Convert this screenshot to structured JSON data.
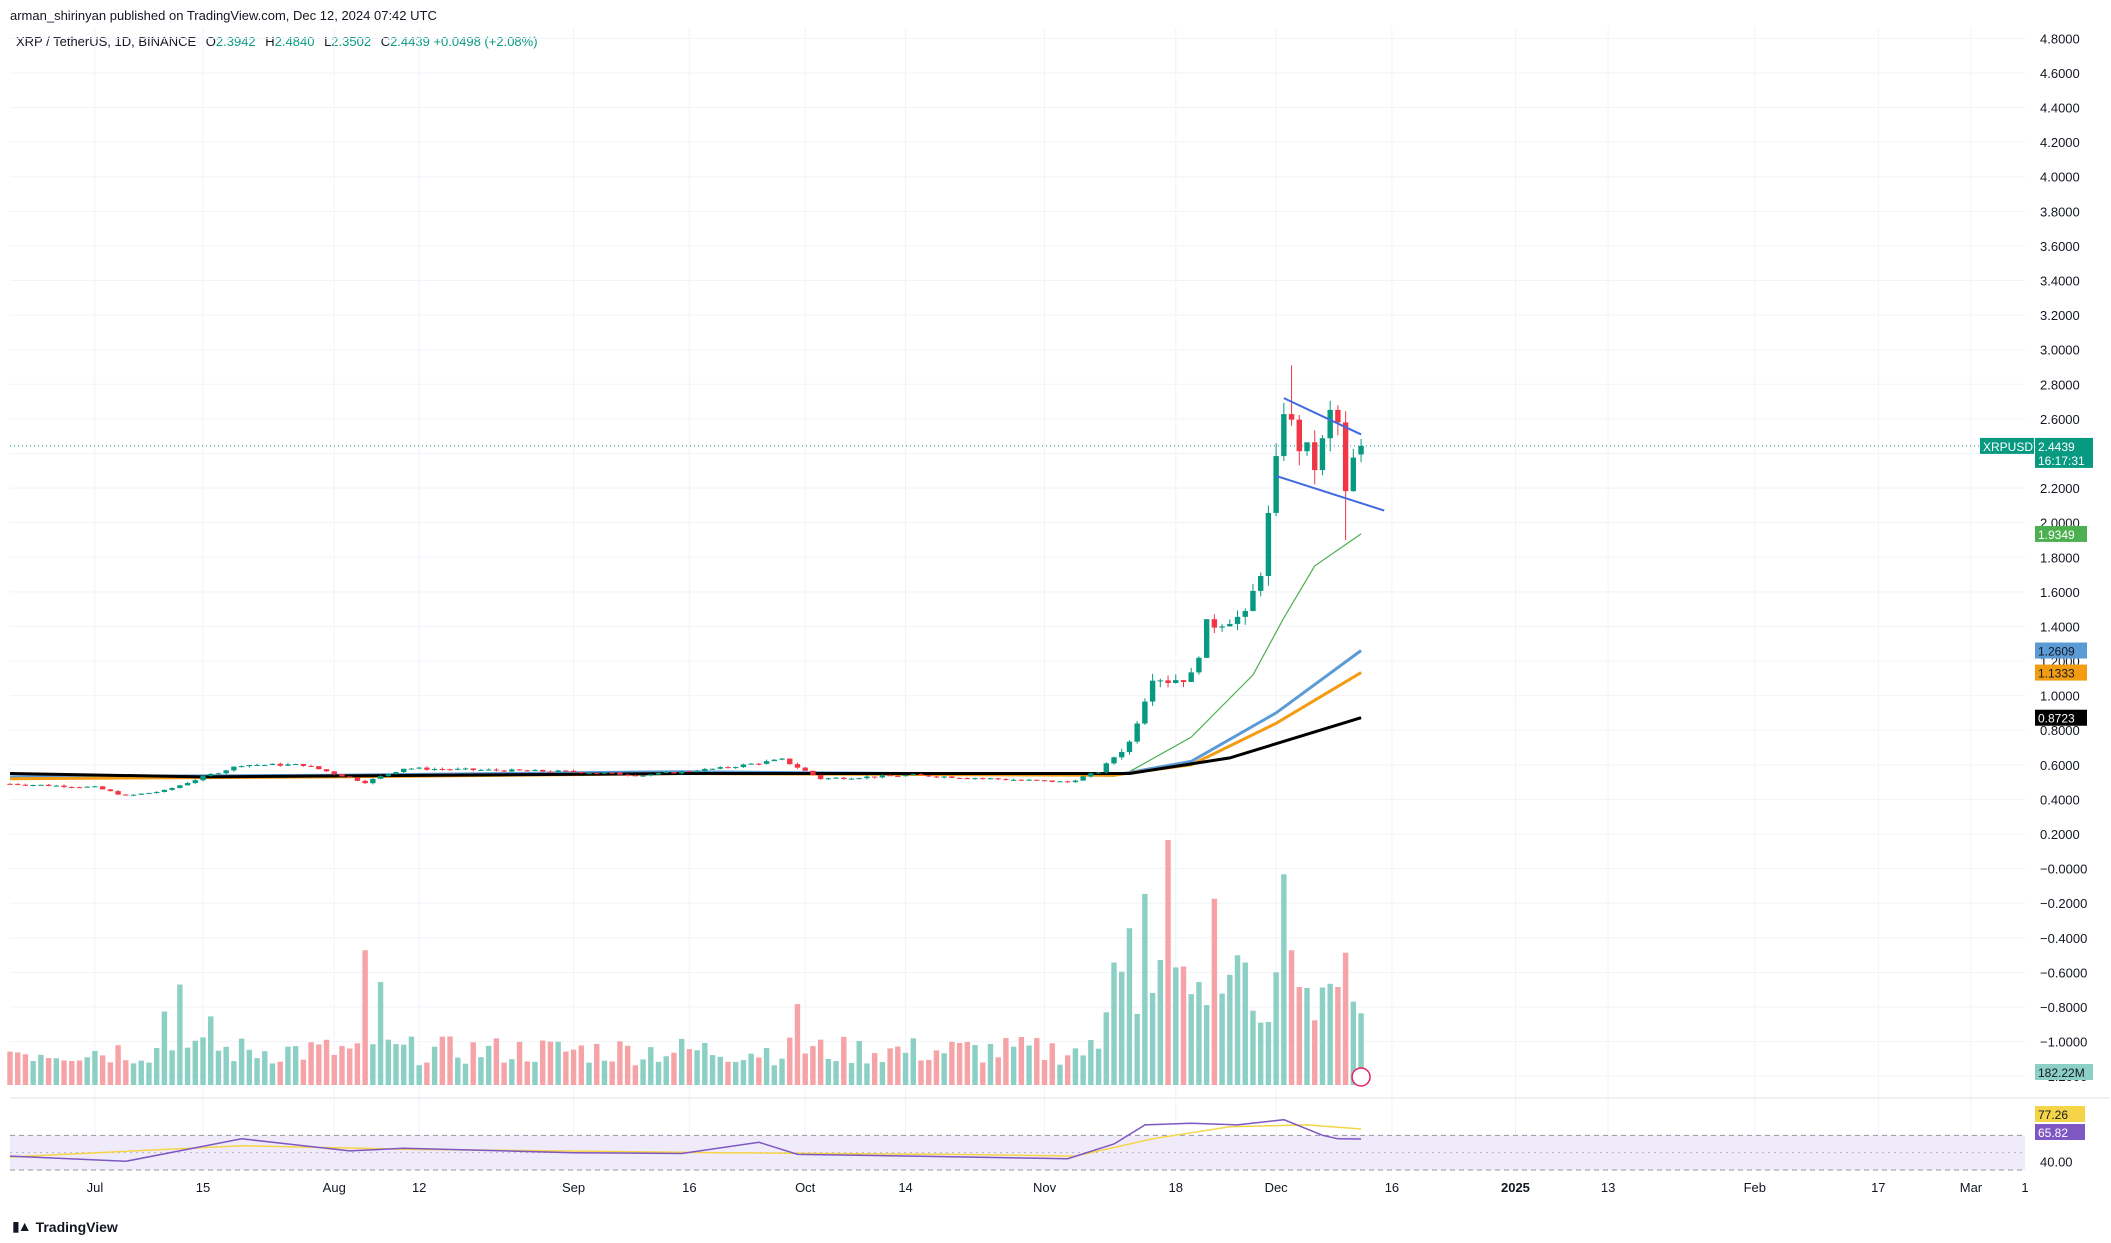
{
  "header": {
    "published": "arman_shirinyan published on TradingView.com, Dec 12, 2024 07:42 UTC",
    "symbol_line": "XRP / TetherUS, 1D, BINANCE",
    "open_label": "O",
    "open": "2.3942",
    "high_label": "H",
    "high": "2.4840",
    "low_label": "L",
    "low": "2.3502",
    "close_label": "C",
    "close": "2.4439",
    "change": "+0.0498 (+2.08%)"
  },
  "brand": {
    "name": "TradingView"
  },
  "colors": {
    "up": "#089981",
    "down": "#f23645",
    "up_vol": "#8ccfc4",
    "down_vol": "#f5a3a6",
    "ema20": "#4caf50",
    "ema50": "#5b9bd5",
    "ema100": "#f39c12",
    "ema200": "#000000",
    "trend": "#4169e1",
    "rsi": "#7e57c2",
    "rsi_ma": "#f5d547",
    "band": "#f0ebfa"
  },
  "chart_data": {
    "type": "candlestick",
    "symbol": "XRPUSDT",
    "title": "XRP / TetherUS, 1D, BINANCE",
    "price_axis_ticks": [
      "4.8000",
      "4.6000",
      "4.4000",
      "4.2000",
      "4.0000",
      "3.8000",
      "3.6000",
      "3.4000",
      "3.2000",
      "3.0000",
      "2.8000",
      "2.6000",
      "2.4000",
      "2.2000",
      "2.0000",
      "1.8000",
      "1.6000",
      "1.4000",
      "1.2000",
      "1.0000",
      "0.8000",
      "0.6000",
      "0.4000",
      "0.2000",
      "−0.0000",
      "−0.2000",
      "−0.4000",
      "−0.6000",
      "−0.8000",
      "−1.0000",
      "−1.2000"
    ],
    "price_ticks_values": [
      4.8,
      4.6,
      4.4,
      4.2,
      4.0,
      3.8,
      3.6,
      3.4,
      3.2,
      3.0,
      2.8,
      2.6,
      2.4,
      2.2,
      2.0,
      1.8,
      1.6,
      1.4,
      1.2,
      1.0,
      0.8,
      0.6,
      0.4,
      0.2,
      0.0,
      -0.2,
      -0.4,
      -0.6,
      -0.8,
      -1.0,
      -1.2
    ],
    "ylim": [
      -1.28,
      4.86
    ],
    "x_range_days": [
      "2024-06-20",
      "2025-03-08"
    ],
    "time_axis_labels": [
      {
        "date": "2024-07-01",
        "label": "Jul"
      },
      {
        "date": "2024-07-15",
        "label": "15"
      },
      {
        "date": "2024-08-01",
        "label": "Aug"
      },
      {
        "date": "2024-08-12",
        "label": "12"
      },
      {
        "date": "2024-09-01",
        "label": "Sep"
      },
      {
        "date": "2024-09-16",
        "label": "16"
      },
      {
        "date": "2024-10-01",
        "label": "Oct"
      },
      {
        "date": "2024-10-14",
        "label": "14"
      },
      {
        "date": "2024-11-01",
        "label": "Nov"
      },
      {
        "date": "2024-11-18",
        "label": "18"
      },
      {
        "date": "2024-12-01",
        "label": "Dec"
      },
      {
        "date": "2024-12-16",
        "label": "16"
      },
      {
        "date": "2025-01-01",
        "label": "2025"
      },
      {
        "date": "2025-01-13",
        "label": "13"
      },
      {
        "date": "2025-02-01",
        "label": "Feb"
      },
      {
        "date": "2025-02-17",
        "label": "17"
      },
      {
        "date": "2025-03-01",
        "label": "Mar"
      }
    ],
    "trailing_axis_label": "1",
    "candle_anchors": [
      [
        "2024-06-20",
        0.49
      ],
      [
        "2024-07-01",
        0.47
      ],
      [
        "2024-07-05",
        0.42
      ],
      [
        "2024-07-10",
        0.45
      ],
      [
        "2024-07-15",
        0.53
      ],
      [
        "2024-07-20",
        0.6
      ],
      [
        "2024-07-28",
        0.6
      ],
      [
        "2024-08-05",
        0.5
      ],
      [
        "2024-08-10",
        0.58
      ],
      [
        "2024-08-20",
        0.57
      ],
      [
        "2024-09-01",
        0.56
      ],
      [
        "2024-09-10",
        0.54
      ],
      [
        "2024-09-20",
        0.58
      ],
      [
        "2024-09-28",
        0.63
      ],
      [
        "2024-10-03",
        0.52
      ],
      [
        "2024-10-15",
        0.54
      ],
      [
        "2024-10-25",
        0.52
      ],
      [
        "2024-11-04",
        0.5
      ],
      [
        "2024-11-08",
        0.56
      ],
      [
        "2024-11-12",
        0.73
      ],
      [
        "2024-11-15",
        1.12
      ],
      [
        "2024-11-17",
        1.09
      ],
      [
        "2024-11-20",
        1.11
      ],
      [
        "2024-11-22",
        1.4
      ],
      [
        "2024-11-25",
        1.45
      ],
      [
        "2024-11-27",
        1.45
      ],
      [
        "2024-11-29",
        1.73
      ],
      [
        "2024-12-01",
        2.32
      ],
      [
        "2024-12-02",
        2.68
      ],
      [
        "2024-12-03",
        2.55
      ],
      [
        "2024-12-04",
        2.45
      ],
      [
        "2024-12-05",
        2.4
      ],
      [
        "2024-12-06",
        2.33
      ],
      [
        "2024-12-07",
        2.45
      ],
      [
        "2024-12-08",
        2.62
      ],
      [
        "2024-12-09",
        2.57
      ],
      [
        "2024-12-10",
        2.15
      ],
      [
        "2024-12-11",
        2.35
      ],
      [
        "2024-12-12",
        2.4439
      ]
    ],
    "last_candle": {
      "date": "2024-12-12",
      "open": 2.3942,
      "high": 2.484,
      "low": 2.3502,
      "close": 2.4439
    },
    "wick_highlights": [
      {
        "date": "2024-12-03",
        "high": 2.91
      },
      {
        "date": "2024-12-10",
        "low": 1.9
      }
    ],
    "series": [
      {
        "name": "XRPUSDT",
        "last": "2.4439",
        "countdown": "16:17:31",
        "color": "#089981"
      },
      {
        "last": "1.9349",
        "color": "#4caf50",
        "points": [
          [
            "2024-11-12",
            0.56
          ],
          [
            "2024-11-20",
            0.76
          ],
          [
            "2024-11-28",
            1.12
          ],
          [
            "2024-12-02",
            1.45
          ],
          [
            "2024-12-06",
            1.75
          ],
          [
            "2024-12-12",
            1.9349
          ]
        ]
      },
      {
        "last": "1.2609",
        "color": "#5b9bd5",
        "points": [
          [
            "2024-06-20",
            0.53
          ],
          [
            "2024-08-01",
            0.54
          ],
          [
            "2024-09-15",
            0.56
          ],
          [
            "2024-11-10",
            0.54
          ],
          [
            "2024-11-20",
            0.62
          ],
          [
            "2024-12-01",
            0.9
          ],
          [
            "2024-12-12",
            1.2609
          ]
        ]
      },
      {
        "last": "1.1333",
        "color": "#f39c12",
        "points": [
          [
            "2024-06-20",
            0.52
          ],
          [
            "2024-08-01",
            0.53
          ],
          [
            "2024-09-15",
            0.55
          ],
          [
            "2024-11-10",
            0.54
          ],
          [
            "2024-11-20",
            0.6
          ],
          [
            "2024-12-01",
            0.84
          ],
          [
            "2024-12-12",
            1.1333
          ]
        ]
      },
      {
        "last": "0.8723",
        "color": "#000000",
        "points": [
          [
            "2024-06-20",
            0.55
          ],
          [
            "2024-07-15",
            0.53
          ],
          [
            "2024-09-15",
            0.55
          ],
          [
            "2024-11-12",
            0.55
          ],
          [
            "2024-11-25",
            0.64
          ],
          [
            "2024-12-12",
            0.8723
          ]
        ]
      }
    ],
    "trendlines": [
      {
        "from": [
          "2024-12-02",
          2.72
        ],
        "to": [
          "2024-12-12",
          2.51
        ]
      },
      {
        "from": [
          "2024-12-01",
          2.27
        ],
        "to": [
          "2024-12-15",
          2.07
        ]
      }
    ],
    "volume": {
      "last": "182.22M",
      "ylim": [
        0,
        1.0
      ],
      "spikes": [
        [
          "2024-07-10",
          0.3
        ],
        [
          "2024-07-12",
          0.41
        ],
        [
          "2024-07-16",
          0.28
        ],
        [
          "2024-08-05",
          0.55
        ],
        [
          "2024-08-07",
          0.42
        ],
        [
          "2024-09-30",
          0.33
        ],
        [
          "2024-11-10",
          0.5
        ],
        [
          "2024-11-12",
          0.64
        ],
        [
          "2024-11-14",
          0.78
        ],
        [
          "2024-11-16",
          0.51
        ],
        [
          "2024-11-17",
          1.0
        ],
        [
          "2024-11-18",
          0.48
        ],
        [
          "2024-11-21",
          0.42
        ],
        [
          "2024-11-23",
          0.76
        ],
        [
          "2024-11-25",
          0.45
        ],
        [
          "2024-12-01",
          0.46
        ],
        [
          "2024-12-02",
          0.86
        ],
        [
          "2024-12-03",
          0.55
        ],
        [
          "2024-12-04",
          0.4
        ],
        [
          "2024-12-09",
          0.4
        ],
        [
          "2024-12-10",
          0.54
        ],
        [
          "2024-12-11",
          0.34
        ]
      ]
    },
    "rsi": {
      "ylim": [
        30,
        90
      ],
      "ticks": [
        "40.00"
      ],
      "tick_values": [
        40
      ],
      "bands": [
        70,
        30
      ],
      "last": "65.82",
      "ma_last": "77.26",
      "points": [
        [
          "2024-06-20",
          46
        ],
        [
          "2024-07-05",
          40
        ],
        [
          "2024-07-20",
          66
        ],
        [
          "2024-08-03",
          52
        ],
        [
          "2024-08-10",
          55
        ],
        [
          "2024-09-01",
          50
        ],
        [
          "2024-09-15",
          49
        ],
        [
          "2024-09-25",
          62
        ],
        [
          "2024-09-30",
          48
        ],
        [
          "2024-10-15",
          46
        ],
        [
          "2024-11-04",
          43
        ],
        [
          "2024-11-10",
          60
        ],
        [
          "2024-11-14",
          82
        ],
        [
          "2024-11-20",
          84
        ],
        [
          "2024-11-26",
          82
        ],
        [
          "2024-12-02",
          88
        ],
        [
          "2024-12-07",
          70
        ],
        [
          "2024-12-09",
          66
        ],
        [
          "2024-12-12",
          65.82
        ]
      ],
      "ma_points": [
        [
          "2024-06-20",
          45
        ],
        [
          "2024-07-20",
          58
        ],
        [
          "2024-08-10",
          54
        ],
        [
          "2024-09-20",
          50
        ],
        [
          "2024-10-20",
          48
        ],
        [
          "2024-11-05",
          46
        ],
        [
          "2024-11-15",
          66
        ],
        [
          "2024-11-25",
          80
        ],
        [
          "2024-12-05",
          82
        ],
        [
          "2024-12-12",
          77.26
        ]
      ]
    }
  }
}
